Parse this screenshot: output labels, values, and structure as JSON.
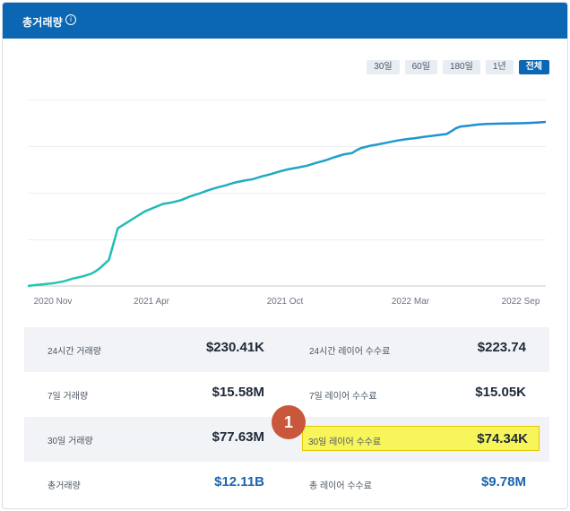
{
  "header": {
    "title": "총거래량",
    "info_icon": "info-icon"
  },
  "ranges": [
    {
      "label": "30일",
      "active": false
    },
    {
      "label": "60일",
      "active": false
    },
    {
      "label": "180일",
      "active": false
    },
    {
      "label": "1년",
      "active": false
    },
    {
      "label": "전체",
      "active": true
    }
  ],
  "chart_data": {
    "type": "area",
    "x_ticks": [
      "2020 Nov",
      "2021 Apr",
      "2021 Oct",
      "2022 Mar",
      "2022 Sep"
    ],
    "x": [
      0,
      5,
      10,
      20,
      30,
      40,
      50,
      60,
      70,
      75,
      80,
      90,
      100,
      110,
      120,
      130,
      140,
      150,
      160,
      170,
      180,
      190,
      200,
      210,
      220,
      230,
      240,
      250,
      260,
      270,
      280,
      290,
      300,
      310,
      320,
      330,
      340,
      350,
      360,
      365,
      370,
      380,
      390,
      400,
      410,
      420,
      430,
      440,
      450,
      460,
      465,
      470,
      475,
      480,
      490,
      500,
      510,
      520,
      530,
      540,
      550,
      560,
      570,
      575
    ],
    "y": [
      0,
      0.3,
      0.6,
      1,
      1.6,
      2.5,
      4,
      5,
      6.5,
      7.8,
      9.5,
      14,
      31,
      34,
      37,
      40,
      42,
      44,
      44.8,
      46,
      48,
      49.5,
      51.3,
      52.8,
      54,
      55.5,
      56.5,
      57.3,
      58.8,
      60,
      61.5,
      62.7,
      63.5,
      64.5,
      66,
      67.3,
      69,
      70.5,
      71.3,
      72.8,
      74,
      75.2,
      76,
      77,
      78,
      78.7,
      79.3,
      80,
      80.6,
      81.2,
      81.5,
      83,
      84.5,
      85.5,
      86,
      86.6,
      86.9,
      87,
      87.1,
      87.2,
      87.3,
      87.5,
      87.8,
      88
    ],
    "series_color": "#22c9b0",
    "series_color_end": "#1e86d6",
    "grid": true
  },
  "stats": [
    {
      "left_label": "24시간 거래량",
      "left_value": "$230.41K",
      "right_label": "24시간 레이어 수수료",
      "right_value": "$223.74"
    },
    {
      "left_label": "7일 거래량",
      "left_value": "$15.58M",
      "right_label": "7일 레이어 수수료",
      "right_value": "$15.05K"
    },
    {
      "left_label": "30일 거래량",
      "left_value": "$77.63M",
      "right_label": "30일 레이어 수수료",
      "right_value": "$74.34K"
    },
    {
      "left_label": "총거래량",
      "left_value": "$12.11B",
      "right_label": "총 레이어 수수료",
      "right_value": "$9.78M"
    }
  ],
  "annotation": {
    "number": "1",
    "color": "#c9573b",
    "highlight_color": "#f7f55a"
  }
}
